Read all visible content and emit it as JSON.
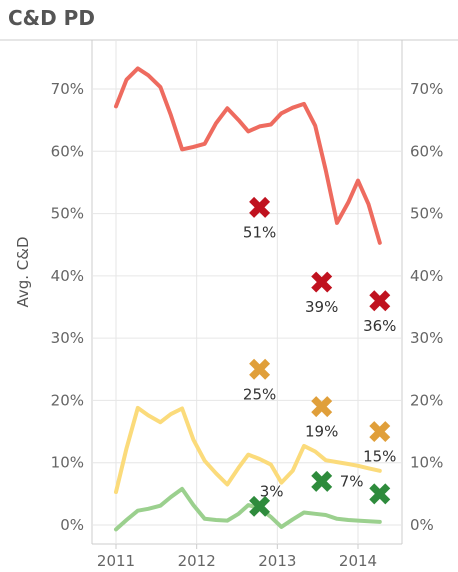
{
  "title": "C&D PD",
  "colors": {
    "red_line": "#ee6b5f",
    "yellow_line": "#fbdb7b",
    "green_line": "#9bd08e",
    "red_marker": "#c0121f",
    "orange_marker": "#e09f3a",
    "green_marker": "#2e8b3c",
    "grid": "#e6e6e6",
    "axis": "#cccccc"
  },
  "chart_data": {
    "type": "line",
    "title": "C&D PD",
    "ylabel": "Avg. C&D",
    "xlabel": "",
    "xlim": [
      2010.9,
      2014.4
    ],
    "ylim": [
      0,
      0.77
    ],
    "y_ticks": [
      "0%",
      "10%",
      "20%",
      "30%",
      "40%",
      "50%",
      "60%",
      "70%"
    ],
    "y_tick_values": [
      0,
      0.1,
      0.2,
      0.3,
      0.4,
      0.5,
      0.6,
      0.7
    ],
    "x_ticks": [
      "2011",
      "2012",
      "2013",
      "2014"
    ],
    "x_tick_values": [
      2011,
      2012,
      2013,
      2014
    ],
    "grid": true,
    "dual_y_axis": true,
    "series": [
      {
        "color_key": "red_line",
        "x": [
          2011.0,
          2011.13,
          2011.27,
          2011.4,
          2011.55,
          2011.68,
          2011.82,
          2011.96,
          2012.1,
          2012.24,
          2012.38,
          2012.52,
          2012.64,
          2012.78,
          2012.92,
          2013.05,
          2013.19,
          2013.33,
          2013.47,
          2013.6,
          2013.74,
          2013.88,
          2014.0,
          2014.13,
          2014.27
        ],
        "values": [
          0.672,
          0.715,
          0.733,
          0.722,
          0.703,
          0.658,
          0.603,
          0.607,
          0.612,
          0.645,
          0.669,
          0.65,
          0.632,
          0.64,
          0.643,
          0.661,
          0.67,
          0.676,
          0.641,
          0.57,
          0.485,
          0.518,
          0.553,
          0.515,
          0.453
        ]
      },
      {
        "color_key": "yellow_line",
        "x": [
          2011.0,
          2011.13,
          2011.27,
          2011.4,
          2011.55,
          2011.68,
          2011.82,
          2011.96,
          2012.1,
          2012.24,
          2012.38,
          2012.52,
          2012.64,
          2012.78,
          2012.92,
          2013.05,
          2013.19,
          2013.33,
          2013.47,
          2013.6,
          2013.74,
          2013.88,
          2014.0,
          2014.13,
          2014.27
        ],
        "values": [
          0.053,
          0.123,
          0.188,
          0.176,
          0.165,
          0.178,
          0.187,
          0.137,
          0.103,
          0.083,
          0.065,
          0.092,
          0.113,
          0.106,
          0.097,
          0.068,
          0.087,
          0.127,
          0.118,
          0.104,
          0.101,
          0.098,
          0.095,
          0.091,
          0.087
        ]
      },
      {
        "color_key": "green_line",
        "x": [
          2011.0,
          2011.13,
          2011.27,
          2011.4,
          2011.55,
          2011.68,
          2011.82,
          2011.96,
          2012.1,
          2012.24,
          2012.38,
          2012.52,
          2012.64,
          2012.78,
          2012.92,
          2013.05,
          2013.19,
          2013.33,
          2013.47,
          2013.6,
          2013.74,
          2013.88,
          2014.0,
          2014.13,
          2014.27
        ],
        "values": [
          -0.007,
          0.008,
          0.023,
          0.026,
          0.031,
          0.045,
          0.058,
          0.032,
          0.01,
          0.008,
          0.007,
          0.018,
          0.032,
          0.027,
          0.013,
          -0.003,
          0.009,
          0.02,
          0.018,
          0.016,
          0.01,
          0.008,
          0.007,
          0.006,
          0.005
        ]
      }
    ],
    "markers": [
      {
        "x": 2012.78,
        "value": 0.51,
        "label": "51%",
        "color_key": "red_marker"
      },
      {
        "x": 2013.55,
        "value": 0.39,
        "label": "39%",
        "color_key": "red_marker"
      },
      {
        "x": 2014.27,
        "value": 0.36,
        "label": "36%",
        "color_key": "red_marker"
      },
      {
        "x": 2012.78,
        "value": 0.25,
        "label": "25%",
        "color_key": "orange_marker"
      },
      {
        "x": 2013.55,
        "value": 0.19,
        "label": "19%",
        "color_key": "orange_marker"
      },
      {
        "x": 2014.27,
        "value": 0.15,
        "label": "15%",
        "color_key": "orange_marker"
      },
      {
        "x": 2012.78,
        "value": 0.03,
        "label": "3%",
        "color_key": "green_marker"
      },
      {
        "x": 2013.55,
        "value": 0.07,
        "label": "7%",
        "color_key": "green_marker"
      },
      {
        "x": 2014.27,
        "value": 0.05,
        "label": "",
        "color_key": "green_marker"
      }
    ]
  }
}
